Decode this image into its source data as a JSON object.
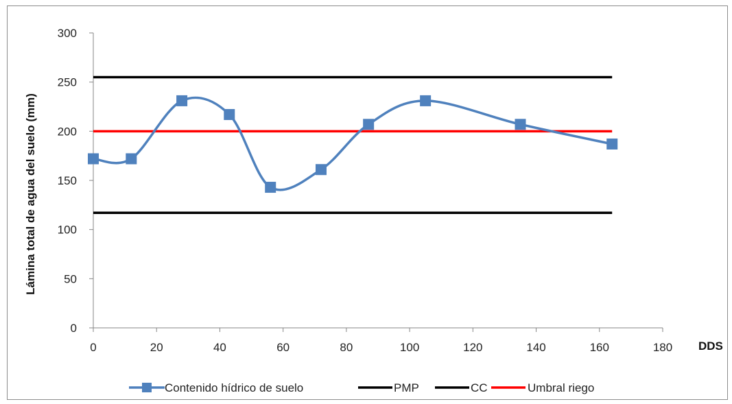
{
  "chart_data": {
    "type": "line",
    "title": "",
    "xlabel": "DDS",
    "ylabel": "Lámina total de agua del suelo (mm)",
    "xlim": [
      0,
      180
    ],
    "ylim": [
      0,
      300
    ],
    "x_ticks": [
      "0",
      "20",
      "40",
      "60",
      "80",
      "100",
      "120",
      "140",
      "160",
      "180"
    ],
    "y_ticks": [
      "0",
      "50",
      "100",
      "150",
      "200",
      "250",
      "300"
    ],
    "grid": false,
    "legend_position": "bottom",
    "series": [
      {
        "name": "Contenido hídrico de suelo",
        "color": "#4f81bd",
        "marker": "square",
        "smooth": true,
        "x": [
          0,
          12,
          28,
          43,
          56,
          72,
          87,
          105,
          135,
          164
        ],
        "y": [
          172,
          172,
          231,
          217,
          143,
          161,
          207,
          231,
          207,
          187
        ]
      },
      {
        "name": "PMP",
        "color": "#000000",
        "x": [
          0,
          164
        ],
        "y": [
          117,
          117
        ]
      },
      {
        "name": "CC",
        "color": "#000000",
        "x": [
          0,
          164
        ],
        "y": [
          255,
          255
        ]
      },
      {
        "name": "Umbral riego",
        "color": "#ff0000",
        "x": [
          0,
          164
        ],
        "y": [
          200,
          200
        ]
      }
    ]
  }
}
